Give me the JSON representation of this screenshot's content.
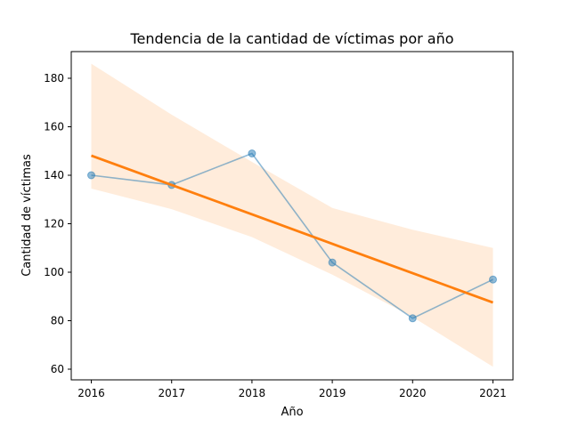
{
  "chart_data": {
    "type": "line",
    "title": "Tendencia de la cantidad de víctimas por año",
    "xlabel": "Año",
    "ylabel": "Cantidad de víctimas",
    "x": [
      2016,
      2017,
      2018,
      2019,
      2020,
      2021
    ],
    "xlim": [
      2015.75,
      2021.25
    ],
    "ylim": [
      55.6,
      191.0
    ],
    "xticks": [
      "2016",
      "2017",
      "2018",
      "2019",
      "2020",
      "2021"
    ],
    "yticks": [
      60,
      80,
      100,
      120,
      140,
      160,
      180
    ],
    "grid": false,
    "series": [
      {
        "kind": "observed",
        "values": [
          140,
          136,
          149,
          104,
          81,
          97
        ],
        "color": "#1f77b4",
        "markers": true
      },
      {
        "kind": "regression",
        "values": [
          148.1,
          136.0,
          123.9,
          111.7,
          99.6,
          87.5
        ],
        "color": "#ff7f0e"
      }
    ],
    "confidence_band": {
      "color": "#ff7f0e",
      "upper": [
        186.0,
        165.0,
        145.5,
        126.5,
        117.5,
        110.0
      ],
      "lower": [
        134.5,
        126.0,
        114.5,
        99.0,
        81.5,
        61.0
      ]
    }
  }
}
